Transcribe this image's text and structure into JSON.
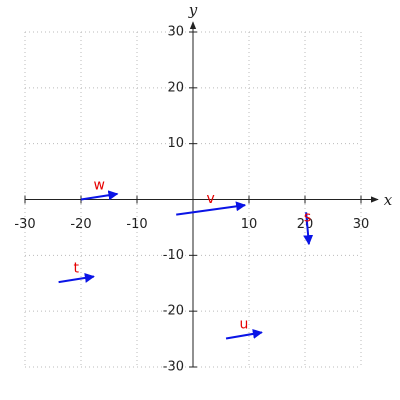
{
  "chart_data": {
    "type": "vector",
    "x_label": "x",
    "y_label": "y",
    "xlim": [
      -30,
      30
    ],
    "ylim": [
      -30,
      30
    ],
    "xticks": [
      -30,
      -20,
      -10,
      10,
      20,
      30
    ],
    "yticks": [
      -30,
      -20,
      -10,
      10,
      20,
      30
    ],
    "grid": true,
    "color": "#0a14e6",
    "label_color": "#e60000",
    "vectors": [
      {
        "name": "w",
        "x": [
          -20,
          -13.5
        ],
        "y": [
          0,
          1
        ]
      },
      {
        "name": "v",
        "x": [
          -3,
          9.3
        ],
        "y": [
          -2.7,
          -1
        ]
      },
      {
        "name": "s",
        "x": [
          20.2,
          20.7
        ],
        "y": [
          -2.3,
          -8
        ]
      },
      {
        "name": "t",
        "x": [
          -24,
          -17.7
        ],
        "y": [
          -14.8,
          -13.8
        ]
      },
      {
        "name": "u",
        "x": [
          5.9,
          12.3
        ],
        "y": [
          -24.9,
          -23.8
        ]
      }
    ]
  }
}
